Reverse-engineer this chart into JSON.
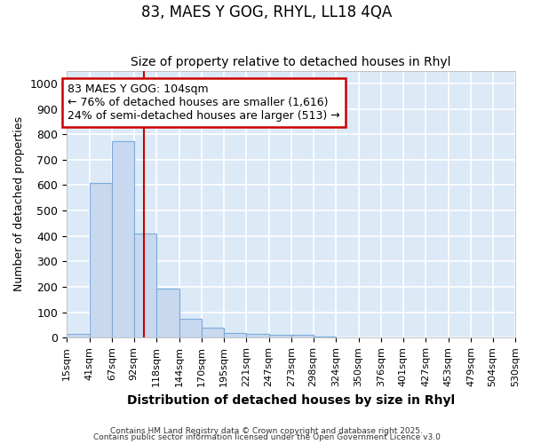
{
  "title": "83, MAES Y GOG, RHYL, LL18 4QA",
  "subtitle": "Size of property relative to detached houses in Rhyl",
  "xlabel": "Distribution of detached houses by size in Rhyl",
  "ylabel": "Number of detached properties",
  "bar_values": [
    15,
    607,
    773,
    411,
    192,
    76,
    38,
    20,
    15,
    12,
    10,
    5,
    0,
    0,
    0,
    0,
    0,
    0,
    0,
    0
  ],
  "bin_edges": [
    15,
    41,
    67,
    92,
    118,
    144,
    170,
    195,
    221,
    247,
    273,
    298,
    324,
    350,
    376,
    401,
    427,
    453,
    479,
    504,
    530
  ],
  "bar_color": "#c8d8ef",
  "bar_edge_color": "#7aacdb",
  "bg_color": "#dce9f7",
  "fig_bg_color": "#ffffff",
  "grid_color": "#ffffff",
  "vline_x": 104,
  "vline_color": "#cc0000",
  "ylim": [
    0,
    1050
  ],
  "yticks": [
    0,
    100,
    200,
    300,
    400,
    500,
    600,
    700,
    800,
    900,
    1000
  ],
  "annotation_line1": "83 MAES Y GOG: 104sqm",
  "annotation_line2": "← 76% of detached houses are smaller (1,616)",
  "annotation_line3": "24% of semi-detached houses are larger (513) →",
  "annotation_box_color": "#cc0000",
  "footer1": "Contains HM Land Registry data © Crown copyright and database right 2025.",
  "footer2": "Contains public sector information licensed under the Open Government Licence v3.0"
}
